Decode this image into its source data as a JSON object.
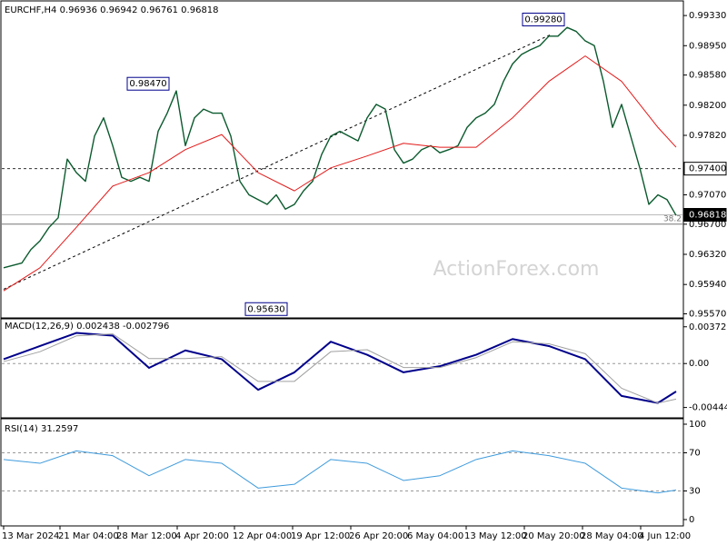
{
  "chart_data": [
    {
      "type": "line",
      "title": "EURCHF,H4 0.96936 0.96942 0.96761 0.96818",
      "watermark": "ActionForex.com",
      "xlim": [
        0,
        74
      ],
      "xticks": [
        {
          "value": 0,
          "label": "13 Mar 2024"
        },
        {
          "value": 6.2,
          "label": "21 Mar 04:00"
        },
        {
          "value": 12.6,
          "label": "28 Mar 12:00"
        },
        {
          "value": 19.1,
          "label": "4 Apr 20:00"
        },
        {
          "value": 25.4,
          "label": "12 Apr 04:00"
        },
        {
          "value": 31.8,
          "label": "19 Apr 12:00"
        },
        {
          "value": 38.2,
          "label": "26 Apr 20:00"
        },
        {
          "value": 44.6,
          "label": "6 May 04:00"
        },
        {
          "value": 50.9,
          "label": "13 May 12:00"
        },
        {
          "value": 57.3,
          "label": "20 May 20:00"
        },
        {
          "value": 63.7,
          "label": "28 May 04:00"
        },
        {
          "value": 70.1,
          "label": "4 Jun 12:00"
        }
      ],
      "ylim": [
        0.9553,
        0.9948
      ],
      "yticks": [
        {
          "value": 0.9933,
          "label": "0.99330"
        },
        {
          "value": 0.9895,
          "label": "0.98950"
        },
        {
          "value": 0.9858,
          "label": "0.98580"
        },
        {
          "value": 0.982,
          "label": "0.98200"
        },
        {
          "value": 0.9782,
          "label": "0.97820"
        },
        {
          "value": 0.9707,
          "label": "0.97070"
        },
        {
          "value": 0.967,
          "label": "0.96700"
        },
        {
          "value": 0.9632,
          "label": "0.96320"
        },
        {
          "value": 0.9594,
          "label": "0.95940"
        },
        {
          "value": 0.9557,
          "label": "0.95570"
        }
      ],
      "series": [
        {
          "color": "#0b5a2e",
          "width": 1.4,
          "x": [
            0,
            1,
            2,
            3,
            4,
            5,
            6,
            7,
            8,
            9,
            10,
            11,
            12,
            13,
            14,
            15,
            16,
            17,
            18,
            19,
            20,
            21,
            22,
            23,
            24,
            25,
            26,
            27,
            28,
            29,
            30,
            31,
            32,
            33,
            34,
            35,
            36,
            37,
            38,
            39,
            40,
            41,
            42,
            43,
            44,
            45,
            46,
            47,
            48,
            49,
            50,
            51,
            52,
            53,
            54,
            55,
            56,
            57,
            58,
            59,
            60,
            61,
            62,
            63,
            64,
            65,
            66,
            67,
            68,
            69,
            70,
            71,
            72,
            73,
            74
          ],
          "values": [
            0.9615,
            0.9618,
            0.9621,
            0.9638,
            0.9649,
            0.9666,
            0.9678,
            0.9752,
            0.9735,
            0.9724,
            0.9781,
            0.9804,
            0.9769,
            0.9729,
            0.9724,
            0.9729,
            0.9724,
            0.9787,
            0.981,
            0.9838,
            0.9769,
            0.9804,
            0.9815,
            0.981,
            0.981,
            0.9781,
            0.9724,
            0.9707,
            0.9701,
            0.9695,
            0.9707,
            0.9689,
            0.9695,
            0.9712,
            0.9724,
            0.9758,
            0.9781,
            0.9787,
            0.9781,
            0.9775,
            0.9804,
            0.9821,
            0.9815,
            0.9764,
            0.9747,
            0.9752,
            0.9764,
            0.9769,
            0.976,
            0.9764,
            0.9769,
            0.9792,
            0.9804,
            0.981,
            0.9821,
            0.985,
            0.9872,
            0.9884,
            0.989,
            0.9895,
            0.9907,
            0.9907,
            0.9918,
            0.9913,
            0.9901,
            0.9895,
            0.985,
            0.9792,
            0.9821,
            0.9781,
            0.9741,
            0.9695,
            0.9707,
            0.9701,
            0.9681
          ]
        },
        {
          "color": "#e31a1a",
          "width": 1,
          "x": [
            0,
            4,
            8,
            12,
            16,
            20,
            24,
            28,
            32,
            36,
            40,
            44,
            48,
            52,
            56,
            60,
            64,
            68,
            72,
            74
          ],
          "values": [
            0.9586,
            0.9615,
            0.9666,
            0.9718,
            0.9735,
            0.9764,
            0.9783,
            0.9735,
            0.9712,
            0.9741,
            0.9756,
            0.9772,
            0.9767,
            0.9767,
            0.9804,
            0.985,
            0.9882,
            0.985,
            0.9792,
            0.9767
          ]
        }
      ],
      "trendline": {
        "x": [
          0,
          60.2
        ],
        "values": [
          0.9588,
          0.9909
        ]
      },
      "annotations": [
        {
          "x": 18.6,
          "value": 0.9847,
          "label": "0.98470"
        },
        {
          "x": 62.1,
          "value": 0.9928,
          "label": "0.99280"
        },
        {
          "x": 31.6,
          "value": 0.9563,
          "label": "0.95630"
        }
      ],
      "levels": [
        {
          "value": 0.974,
          "label": "0.97400",
          "dashed": true,
          "tag": "light"
        },
        {
          "value": 0.96818,
          "label": "0.96818",
          "dashed": false,
          "tag": "dark"
        }
      ],
      "fib": {
        "value": 0.967,
        "label": "38.2"
      }
    },
    {
      "type": "line",
      "title": "MACD(12,26,9) 0.002438 -0.002796",
      "ylim": [
        -0.00531,
        0.00425
      ],
      "yticks": [
        0.00372,
        {
          "value": 0,
          "label": "0.00"
        },
        -0.004447
      ],
      "series": [
        {
          "color": "#00008b",
          "width": 2,
          "x": [
            0,
            4,
            8,
            12,
            16,
            20,
            24,
            28,
            32,
            36,
            40,
            44,
            48,
            52,
            56,
            60,
            64,
            68,
            72,
            74
          ],
          "values": [
            0.00044,
            0.00177,
            0.0031,
            0.00283,
            -0.00044,
            0.00133,
            0.00044,
            -0.00266,
            -0.00089,
            0.00221,
            0.00089,
            -0.00089,
            -0.00027,
            0.00089,
            0.00248,
            0.00177,
            0.00044,
            -0.00328,
            -0.00399,
            -0.00283
          ]
        },
        {
          "color": "#a0a0a0",
          "width": 1,
          "x": [
            0,
            4,
            8,
            12,
            16,
            20,
            24,
            28,
            32,
            36,
            40,
            44,
            48,
            52,
            56,
            60,
            64,
            68,
            72,
            74
          ],
          "values": [
            0.0002,
            0.0012,
            0.0028,
            0.003,
            0.0005,
            0.0005,
            0.0007,
            -0.0018,
            -0.0018,
            0.0012,
            0.0014,
            -0.0004,
            -0.0004,
            0.0006,
            0.0022,
            0.002,
            0.001,
            -0.0025,
            -0.004,
            -0.0036
          ]
        }
      ]
    },
    {
      "type": "line",
      "title": "RSI(14) 31.2597",
      "ylim": [
        0,
        100
      ],
      "yticks": [
        100,
        70,
        30,
        0
      ],
      "dashed_levels": [
        70,
        30
      ],
      "series": [
        {
          "color": "#3f9bdc",
          "width": 1,
          "x": [
            0,
            4,
            8,
            12,
            16,
            20,
            24,
            28,
            32,
            36,
            40,
            44,
            48,
            52,
            56,
            60,
            64,
            68,
            72,
            74
          ],
          "values": [
            63,
            59,
            72,
            67,
            46,
            63,
            59,
            33,
            37,
            63,
            59,
            41,
            46,
            63,
            72,
            67,
            59,
            33,
            28,
            31
          ]
        }
      ]
    }
  ]
}
